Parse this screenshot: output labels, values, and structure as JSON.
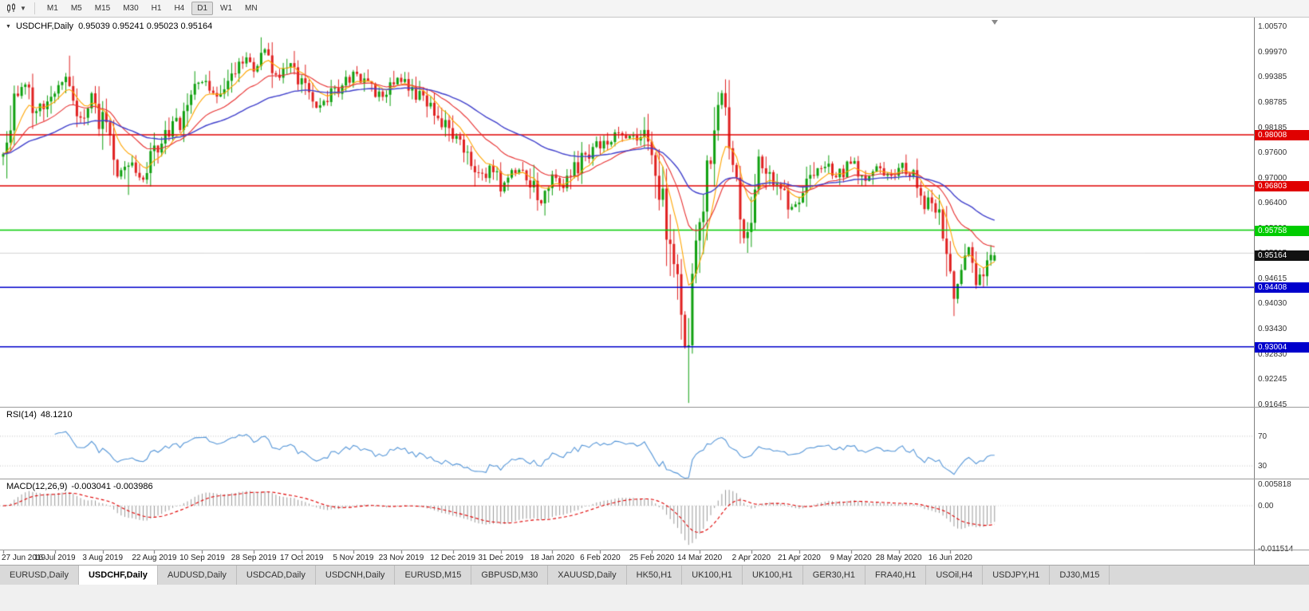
{
  "colors": {
    "bull": "#0fa00f",
    "bear": "#e02020",
    "ma_fast": "#ffa500",
    "ma_mid": "#e83030",
    "ma_slow": "#4040cc",
    "rsi_line": "#5596d8",
    "macd_hist": "#999999",
    "macd_signal": "#e00000",
    "grid_faint": "#d4d4d4",
    "badge_current_bg": "#111111"
  },
  "toolbar": {
    "chart_type_icon": "candlestick-chart-icon",
    "timeframes": [
      "M1",
      "M5",
      "M15",
      "M30",
      "H1",
      "H4",
      "D1",
      "W1",
      "MN"
    ],
    "active_timeframe": "D1"
  },
  "main_panel": {
    "collapse_icon": "▼",
    "symbol": "USDCHF,Daily",
    "ohlc": "0.95039 0.95241 0.95023 0.95164"
  },
  "price_axis": {
    "ticks": [
      "1.00570",
      "0.99970",
      "0.99385",
      "0.98785",
      "0.98185",
      "0.97600",
      "0.97000",
      "0.96400",
      "0.95800",
      "0.95215",
      "0.94615",
      "0.94030",
      "0.93430",
      "0.92830",
      "0.92245",
      "0.91645"
    ],
    "current_price": "0.95164"
  },
  "rsi_panel": {
    "label": "RSI(14)",
    "value": "48.1210",
    "levels": [
      "70",
      "30"
    ]
  },
  "macd_panel": {
    "label": "MACD(12,26,9)",
    "values": "-0.003041 -0.003986",
    "axis": [
      "0.005818",
      "0.00",
      "-0.011514"
    ]
  },
  "tabs": [
    {
      "label": "EURUSD,Daily",
      "active": false
    },
    {
      "label": "USDCHF,Daily",
      "active": true
    },
    {
      "label": "AUDUSD,Daily",
      "active": false
    },
    {
      "label": "USDCAD,Daily",
      "active": false
    },
    {
      "label": "USDCNH,Daily",
      "active": false
    },
    {
      "label": "EURUSD,M15",
      "active": false
    },
    {
      "label": "GBPUSD,M30",
      "active": false
    },
    {
      "label": "XAUUSD,Daily",
      "active": false
    },
    {
      "label": "HK50,H1",
      "active": false
    },
    {
      "label": "UK100,H1",
      "active": false
    },
    {
      "label": "UK100,H1",
      "active": false
    },
    {
      "label": "GER30,H1",
      "active": false
    },
    {
      "label": "FRA40,H1",
      "active": false
    },
    {
      "label": "USOil,H4",
      "active": false
    },
    {
      "label": "USDJPY,H1",
      "active": false
    },
    {
      "label": "DJ30,M15",
      "active": false
    }
  ],
  "chart_data": {
    "type": "candlestick",
    "symbol": "USDCHF",
    "timeframe": "Daily",
    "title": "USDCHF,Daily",
    "current_ohlc": {
      "open": 0.95039,
      "high": 0.95241,
      "low": 0.95023,
      "close": 0.95164
    },
    "y_range": [
      0.91645,
      1.0057
    ],
    "n_candles": 270,
    "x_tick_labels": [
      "27 Jun 2019",
      "16 Jul 2019",
      "3 Aug 2019",
      "22 Aug 2019",
      "10 Sep 2019",
      "28 Sep 2019",
      "17 Oct 2019",
      "5 Nov 2019",
      "23 Nov 2019",
      "12 Dec 2019",
      "31 Dec 2019",
      "18 Jan 2020",
      "6 Feb 2020",
      "25 Feb 2020",
      "14 Mar 2020",
      "2 Apr 2020",
      "21 Apr 2020",
      "9 May 2020",
      "28 May 2020",
      "16 Jun 2020"
    ],
    "close_path_anchors": [
      [
        0,
        0.978
      ],
      [
        3,
        0.99
      ],
      [
        6,
        0.9935
      ],
      [
        9,
        0.9855
      ],
      [
        12,
        0.9885
      ],
      [
        15,
        0.9915
      ],
      [
        17,
        0.994
      ],
      [
        20,
        0.983
      ],
      [
        24,
        0.9885
      ],
      [
        27,
        0.982
      ],
      [
        31,
        0.9712
      ],
      [
        35,
        0.9748
      ],
      [
        38,
        0.97
      ],
      [
        41,
        0.9762
      ],
      [
        45,
        0.98
      ],
      [
        49,
        0.985
      ],
      [
        54,
        0.9935
      ],
      [
        58,
        0.9898
      ],
      [
        62,
        0.9952
      ],
      [
        66,
        0.9985
      ],
      [
        68,
        0.9958
      ],
      [
        71,
        0.9992
      ],
      [
        75,
        0.993
      ],
      [
        78,
        0.9968
      ],
      [
        81,
        0.9915
      ],
      [
        85,
        0.987
      ],
      [
        89,
        0.9902
      ],
      [
        95,
        0.994
      ],
      [
        99,
        0.9918
      ],
      [
        103,
        0.989
      ],
      [
        108,
        0.9935
      ],
      [
        112,
        0.9898
      ],
      [
        116,
        0.9868
      ],
      [
        120,
        0.9828
      ],
      [
        122,
        0.98
      ],
      [
        126,
        0.9758
      ],
      [
        130,
        0.97
      ],
      [
        133,
        0.9728
      ],
      [
        135,
        0.9682
      ],
      [
        139,
        0.972
      ],
      [
        143,
        0.9698
      ],
      [
        146,
        0.964
      ],
      [
        149,
        0.97
      ],
      [
        152,
        0.968
      ],
      [
        156,
        0.973
      ],
      [
        160,
        0.9762
      ],
      [
        162,
        0.9778
      ],
      [
        166,
        0.9802
      ],
      [
        170,
        0.979
      ],
      [
        174,
        0.9812
      ],
      [
        178,
        0.97
      ],
      [
        181,
        0.956
      ],
      [
        183,
        0.943
      ],
      [
        185,
        0.93
      ],
      [
        186,
        0.9255
      ],
      [
        187,
        0.942
      ],
      [
        189,
        0.96
      ],
      [
        191,
        0.9705
      ],
      [
        193,
        0.985
      ],
      [
        195,
        0.9885
      ],
      [
        197,
        0.978
      ],
      [
        199,
        0.9655
      ],
      [
        201,
        0.956
      ],
      [
        203,
        0.965
      ],
      [
        205,
        0.9752
      ],
      [
        207,
        0.97
      ],
      [
        210,
        0.9682
      ],
      [
        214,
        0.9625
      ],
      [
        218,
        0.968
      ],
      [
        222,
        0.9732
      ],
      [
        226,
        0.9702
      ],
      [
        230,
        0.9742
      ],
      [
        234,
        0.97
      ],
      [
        238,
        0.9722
      ],
      [
        240,
        0.97
      ],
      [
        244,
        0.973
      ],
      [
        248,
        0.9682
      ],
      [
        252,
        0.9622
      ],
      [
        254,
        0.96
      ],
      [
        256,
        0.956
      ],
      [
        258,
        0.942
      ],
      [
        260,
        0.948
      ],
      [
        262,
        0.952
      ],
      [
        264,
        0.9458
      ],
      [
        266,
        0.9482
      ],
      [
        268,
        0.951
      ],
      [
        269,
        0.95164
      ]
    ],
    "spikes": [
      {
        "i": 34,
        "low": 0.9659
      },
      {
        "i": 70,
        "high": 1.0031
      },
      {
        "i": 186,
        "low": 0.9168
      },
      {
        "i": 258,
        "low": 0.9373
      }
    ],
    "hlines": [
      {
        "price": 0.98008,
        "color": "#e00000"
      },
      {
        "price": 0.96803,
        "color": "#e00000"
      },
      {
        "price": 0.95758,
        "color": "#00cc00"
      },
      {
        "price": 0.94408,
        "color": "#0000cc"
      },
      {
        "price": 0.93004,
        "color": "#0000cc"
      }
    ],
    "faint_gridline_price": 0.95215,
    "moving_averages": [
      {
        "period": 8,
        "color": "#ffa500"
      },
      {
        "period": 21,
        "color": "#e83030"
      },
      {
        "period": 50,
        "color": "#4040cc"
      }
    ],
    "rsi": {
      "period": 14,
      "current": 48.121,
      "levels": [
        70,
        30
      ]
    },
    "macd": {
      "fast": 12,
      "slow": 26,
      "signal": 9,
      "current_macd": -0.003041,
      "current_signal": -0.003986,
      "axis_top": 0.005818,
      "axis_zero": 0.0,
      "axis_bottom": -0.011514
    }
  }
}
